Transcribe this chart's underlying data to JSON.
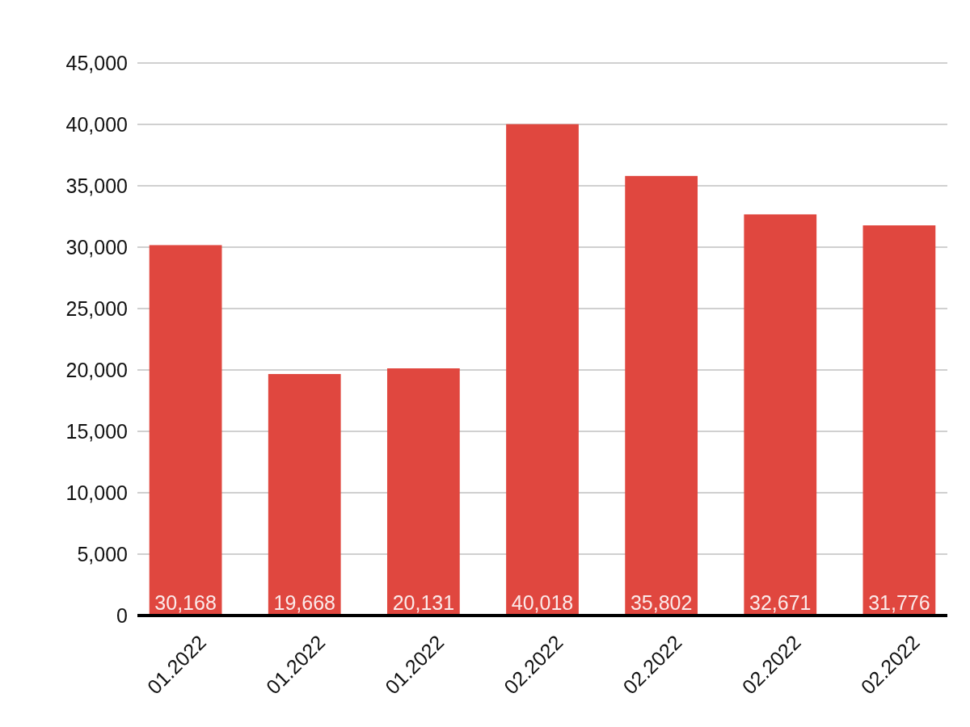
{
  "chart_data": {
    "type": "bar",
    "categories": [
      "01.2022",
      "01.2022",
      "01.2022",
      "02.2022",
      "02.2022",
      "02.2022",
      "02.2022"
    ],
    "values": [
      30168,
      19668,
      20131,
      40018,
      35802,
      32671,
      31776
    ],
    "value_labels": [
      "30,168",
      "19,668",
      "20,131",
      "40,018",
      "35,802",
      "32,671",
      "31,776"
    ],
    "color": "#e0473f",
    "ylim": [
      0,
      45000
    ],
    "yticks": [
      {
        "value": 0,
        "label": "0"
      },
      {
        "value": 5000,
        "label": "5,000"
      },
      {
        "value": 10000,
        "label": "10,000"
      },
      {
        "value": 15000,
        "label": "15,000"
      },
      {
        "value": 20000,
        "label": "20,000"
      },
      {
        "value": 25000,
        "label": "25,000"
      },
      {
        "value": 30000,
        "label": "30,000"
      },
      {
        "value": 35000,
        "label": "35,000"
      },
      {
        "value": 40000,
        "label": "40,000"
      },
      {
        "value": 45000,
        "label": "45,000"
      }
    ],
    "grid": "y"
  }
}
